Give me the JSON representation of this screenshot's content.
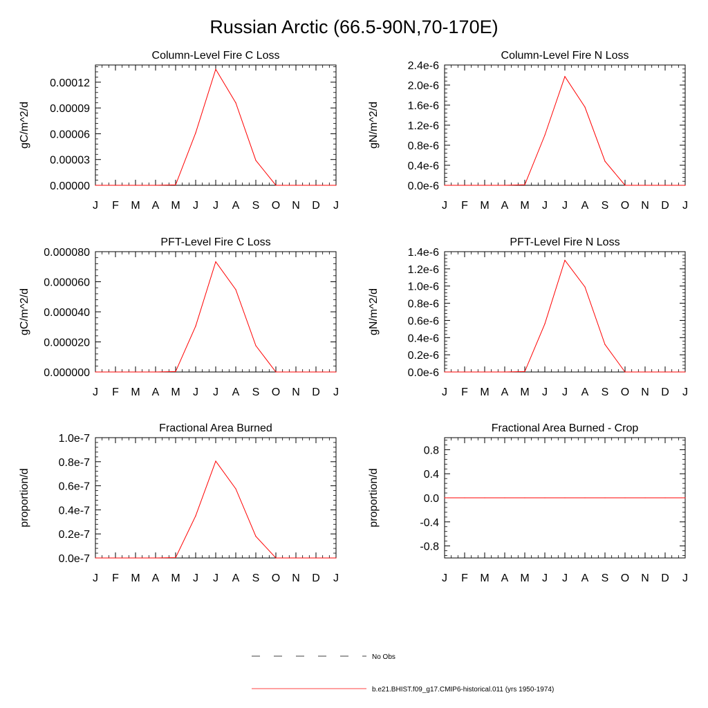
{
  "page": {
    "title": "Russian Arctic (66.5-90N,70-170E)"
  },
  "colors": {
    "series": "#ff0000",
    "axis": "#000000",
    "obs_line": "#000000"
  },
  "chart_data": [
    {
      "type": "line",
      "title": "Column-Level Fire C Loss",
      "ylabel": "gC/m^2/d",
      "categories": [
        "J",
        "F",
        "M",
        "A",
        "M",
        "J",
        "J",
        "A",
        "S",
        "O",
        "N",
        "D",
        "J"
      ],
      "ylim": [
        0,
        0.00014
      ],
      "yticks": [
        0,
        3e-05,
        6e-05,
        9e-05,
        0.00012
      ],
      "ytick_labels": [
        "0.00000",
        "0.00003",
        "0.00006",
        "0.00009",
        "0.00012"
      ],
      "series": [
        {
          "values": [
            0,
            0,
            0,
            0,
            5e-07,
            6.1e-05,
            0.000135,
            9.6e-05,
            2.9e-05,
            0,
            0,
            0,
            0
          ]
        }
      ]
    },
    {
      "type": "line",
      "title": "Column-Level Fire N Loss",
      "ylabel": "gN/m^2/d",
      "categories": [
        "J",
        "F",
        "M",
        "A",
        "M",
        "J",
        "J",
        "A",
        "S",
        "O",
        "N",
        "D",
        "J"
      ],
      "ylim": [
        0,
        2.4e-06
      ],
      "yticks": [
        0,
        4e-07,
        8e-07,
        1.2e-06,
        1.6e-06,
        2e-06,
        2.4e-06
      ],
      "ytick_labels": [
        "0.0e-6",
        "0.4e-6",
        "0.8e-6",
        "1.2e-6",
        "1.6e-6",
        "2.0e-6",
        "2.4e-6"
      ],
      "series": [
        {
          "values": [
            0,
            0,
            0,
            0,
            1e-08,
            1e-06,
            2.17e-06,
            1.56e-06,
            4.8e-07,
            0,
            0,
            0,
            0
          ]
        }
      ]
    },
    {
      "type": "line",
      "title": "PFT-Level Fire C Loss",
      "ylabel": "gC/m^2/d",
      "categories": [
        "J",
        "F",
        "M",
        "A",
        "M",
        "J",
        "J",
        "A",
        "S",
        "O",
        "N",
        "D",
        "J"
      ],
      "ylim": [
        0,
        8e-05
      ],
      "yticks": [
        0,
        2e-05,
        4e-05,
        6e-05,
        8e-05
      ],
      "ytick_labels": [
        "0.000000",
        "0.000020",
        "0.000040",
        "0.000060",
        "0.000080"
      ],
      "series": [
        {
          "values": [
            0,
            0,
            0,
            0,
            3e-07,
            3.05e-05,
            7.33e-05,
            5.48e-05,
            1.75e-05,
            0,
            0,
            0,
            0
          ]
        }
      ]
    },
    {
      "type": "line",
      "title": "PFT-Level Fire N Loss",
      "ylabel": "gN/m^2/d",
      "categories": [
        "J",
        "F",
        "M",
        "A",
        "M",
        "J",
        "J",
        "A",
        "S",
        "O",
        "N",
        "D",
        "J"
      ],
      "ylim": [
        0,
        1.4e-06
      ],
      "yticks": [
        0,
        2e-07,
        4e-07,
        6e-07,
        8e-07,
        1e-06,
        1.2e-06,
        1.4e-06
      ],
      "ytick_labels": [
        "0.0e-6",
        "0.2e-6",
        "0.4e-6",
        "0.6e-6",
        "0.8e-6",
        "1.0e-6",
        "1.2e-6",
        "1.4e-6"
      ],
      "series": [
        {
          "values": [
            0,
            0,
            0,
            0,
            5e-09,
            5.6e-07,
            1.3e-06,
            9.9e-07,
            3.2e-07,
            0,
            0,
            0,
            0
          ]
        }
      ]
    },
    {
      "type": "line",
      "title": "Fractional Area Burned",
      "ylabel": "proportion/d",
      "categories": [
        "J",
        "F",
        "M",
        "A",
        "M",
        "J",
        "J",
        "A",
        "S",
        "O",
        "N",
        "D",
        "J"
      ],
      "ylim": [
        0,
        1e-07
      ],
      "yticks": [
        0,
        2e-08,
        4e-08,
        6e-08,
        8e-08,
        1e-07
      ],
      "ytick_labels": [
        "0.0e-7",
        "0.2e-7",
        "0.4e-7",
        "0.6e-7",
        "0.8e-7",
        "1.0e-7"
      ],
      "series": [
        {
          "values": [
            0,
            0,
            0,
            0,
            3e-10,
            3.5e-08,
            8.05e-08,
            5.75e-08,
            1.8e-08,
            0,
            0,
            0,
            0
          ]
        }
      ]
    },
    {
      "type": "line",
      "title": "Fractional Area Burned - Crop",
      "ylabel": "proportion/d",
      "categories": [
        "J",
        "F",
        "M",
        "A",
        "M",
        "J",
        "J",
        "A",
        "S",
        "O",
        "N",
        "D",
        "J"
      ],
      "ylim": [
        -1.0,
        1.0
      ],
      "yticks": [
        -0.8,
        -0.4,
        0.0,
        0.4,
        0.8
      ],
      "ytick_labels": [
        "-0.8",
        "-0.4",
        "0.0",
        "0.4",
        "0.8"
      ],
      "series": [
        {
          "values": [
            0,
            0,
            0,
            0,
            0,
            0,
            0,
            0,
            0,
            0,
            0,
            0,
            0
          ]
        }
      ]
    }
  ],
  "legend": {
    "obs_label": "No Obs",
    "model_label": "b.e21.BHIST.f09_g17.CMIP6-historical.011 (yrs 1950-1974)"
  }
}
